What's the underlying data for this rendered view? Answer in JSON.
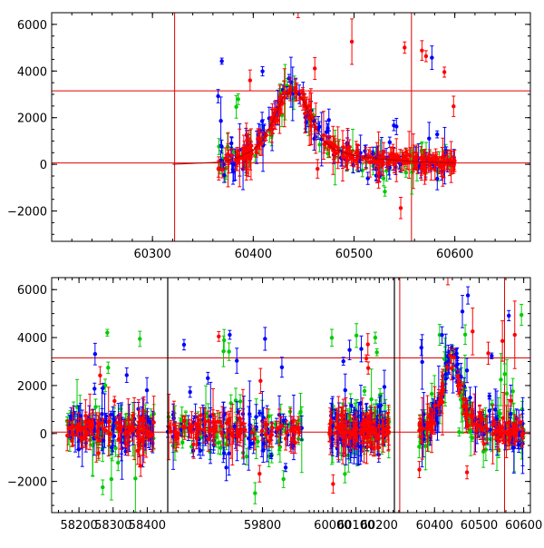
{
  "chart_data": [
    {
      "type": "scatter",
      "panel": "top",
      "title": "",
      "xlabel": "",
      "ylabel": "",
      "xlim": [
        60200,
        60675
      ],
      "ylim": [
        -3300,
        6500
      ],
      "xticks": [
        60300,
        60400,
        60500,
        60600
      ],
      "xtick_labels": [
        "60300",
        "60400",
        "60500",
        "60600"
      ],
      "yticks": [
        -2000,
        0,
        2000,
        4000,
        6000
      ],
      "ytick_labels": [
        "−2000",
        "0",
        "2000",
        "4000",
        "6000"
      ],
      "hlines": [
        3150,
        60
      ],
      "vlines": [
        60322,
        60557
      ],
      "model_curve": {
        "x": [
          60320,
          60370,
          60385,
          60400,
          60410,
          60420,
          60430,
          60440,
          60450,
          60460,
          60470,
          60480,
          60500,
          60520,
          60560,
          60600
        ],
        "y": [
          0,
          100,
          300,
          600,
          1100,
          1900,
          2900,
          3200,
          2700,
          1700,
          1000,
          650,
          380,
          250,
          120,
          60
        ]
      },
      "series": [
        {
          "color": "#00cc00",
          "x_range": [
            60365,
            60600
          ],
          "scatter": 700,
          "outliers": 0.09,
          "count": 95
        },
        {
          "color": "#0000ff",
          "x_range": [
            60365,
            60600
          ],
          "scatter": 750,
          "outliers": 0.09,
          "count": 120
        },
        {
          "color": "#ff0000",
          "x_range": [
            60365,
            60600
          ],
          "scatter": 350,
          "outliers": 0.05,
          "count": 240
        }
      ],
      "grid": false,
      "legend": "none"
    },
    {
      "type": "scatter",
      "panel": "bottom",
      "title": "",
      "xlabel": "",
      "ylabel": "",
      "ylim": [
        -3300,
        6500
      ],
      "yticks": [
        -2000,
        0,
        2000,
        4000,
        6000
      ],
      "ytick_labels": [
        "−2000",
        "0",
        "2000",
        "4000",
        "6000"
      ],
      "hlines": [
        3150,
        60
      ],
      "segments": [
        {
          "xlim": [
            58120,
            58460
          ],
          "xticks": [
            58200,
            58300,
            58400
          ],
          "xtick_labels": [
            "58200",
            "58300",
            "58400"
          ],
          "data_range": [
            58165,
            58420
          ],
          "vlines": []
        },
        {
          "xlim": [
            59620,
            59880
          ],
          "xticks": [
            59800
          ],
          "xtick_labels": [
            "59800"
          ],
          "data_range": [
            59620,
            59875
          ],
          "vlines": []
        },
        {
          "xlim": [
            59880,
            60265
          ],
          "xticks": [
            60000,
            60100,
            60200
          ],
          "xtick_labels": [
            "60000",
            "60100",
            "60200"
          ],
          "data_range": [
            59985,
            60245
          ],
          "vlines": []
        },
        {
          "xlim": [
            60310,
            60615
          ],
          "xticks": [
            60400,
            60500,
            60600
          ],
          "xtick_labels": [
            "60400",
            "60500",
            "60600"
          ],
          "data_range": [
            60365,
            60600
          ],
          "vlines": [
            60322,
            60557
          ]
        }
      ],
      "series": [
        {
          "color": "#00cc00",
          "scatter": 900,
          "outliers": 0.1
        },
        {
          "color": "#0000ff",
          "scatter": 900,
          "outliers": 0.1
        },
        {
          "color": "#ff0000",
          "scatter": 500,
          "outliers": 0.06
        }
      ],
      "grid": false,
      "legend": "none"
    }
  ]
}
